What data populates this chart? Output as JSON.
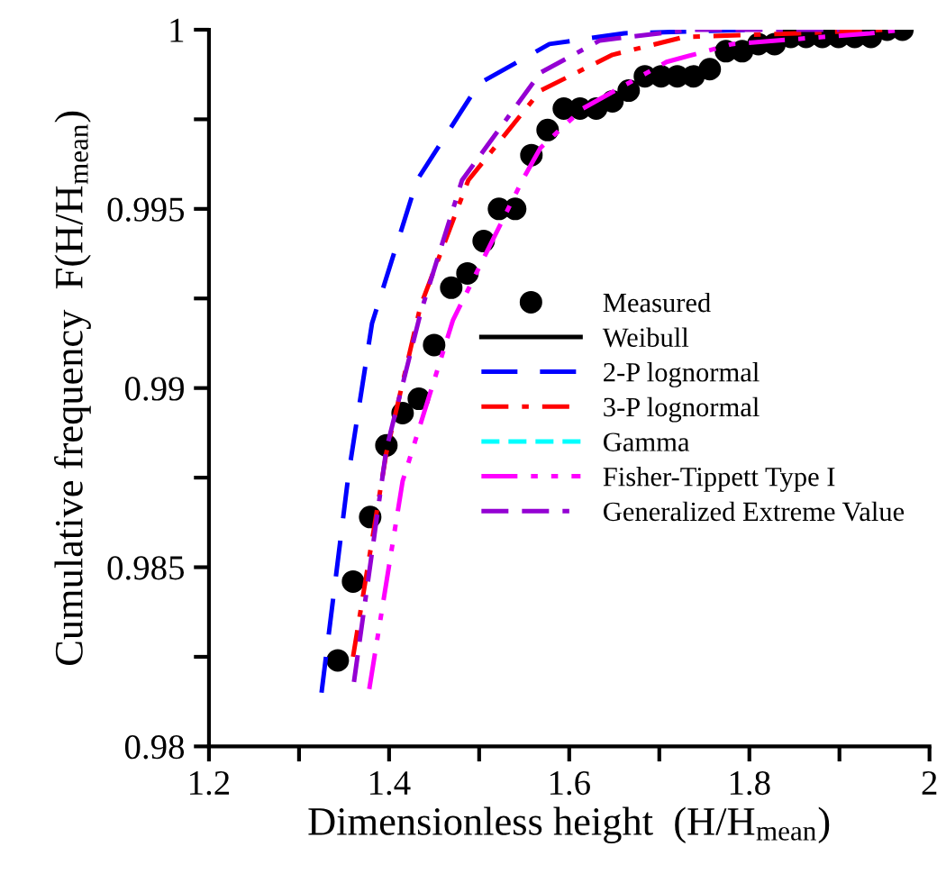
{
  "chart_data": {
    "type": "line",
    "xlabel": "Dimensionless height  (H/H$_{mean}$)",
    "ylabel": "Cumulative frequency  F(H/H$_{mean}$)",
    "xlim": [
      1.2,
      2
    ],
    "ylim": [
      0.98,
      1
    ],
    "xticks": [
      1.2,
      {
        "value": 1.3,
        "label": null
      },
      1.4,
      {
        "value": 1.5,
        "label": null
      },
      1.6,
      {
        "value": 1.7,
        "label": null
      },
      1.8,
      {
        "value": 1.9,
        "label": null
      },
      2
    ],
    "yticks": [
      0.98,
      {
        "value": 0.9825,
        "label": null
      },
      0.985,
      {
        "value": 0.9875,
        "label": null
      },
      0.99,
      {
        "value": 0.9925,
        "label": null
      },
      0.995,
      {
        "value": 0.9975,
        "label": null
      },
      1
    ],
    "grid": false,
    "legend": "right",
    "series": [
      {
        "name": "Measured",
        "type": "scatter",
        "marker": "circle",
        "color": "#000000",
        "x": [
          1.343,
          1.36,
          1.379,
          1.397,
          1.415,
          1.433,
          1.45,
          1.469,
          1.487,
          1.505,
          1.522,
          1.54,
          1.558,
          1.576,
          1.594,
          1.612,
          1.63,
          1.648,
          1.666,
          1.684,
          1.702,
          1.72,
          1.738,
          1.756,
          1.774,
          1.792,
          1.81,
          1.828,
          1.846,
          1.863,
          1.881,
          1.899,
          1.917,
          1.935,
          1.953,
          1.97
        ],
        "values": [
          0.9824,
          0.9846,
          0.9864,
          0.9884,
          0.9893,
          0.9897,
          0.9912,
          0.9928,
          0.9932,
          0.9941,
          0.995,
          0.995,
          0.9965,
          0.9972,
          0.9978,
          0.9978,
          0.9978,
          0.998,
          0.9983,
          0.9987,
          0.9987,
          0.9987,
          0.9987,
          0.9989,
          0.9994,
          0.9994,
          0.9996,
          0.9996,
          0.9998,
          0.9998,
          0.9998,
          0.9998,
          0.9998,
          0.9998,
          1.0,
          1.0
        ]
      },
      {
        "name": "Weibull",
        "line_style": "solid",
        "color": "#000000"
      },
      {
        "name": "2-P lognormal",
        "line_style": "longdash",
        "color": "#0000ff",
        "x": [
          1.325,
          1.355,
          1.381,
          1.431,
          1.5,
          1.578,
          1.661,
          1.8
        ],
        "values": [
          0.9815,
          0.9876,
          0.9918,
          0.9958,
          0.9985,
          0.9996,
          0.9999,
          1.0
        ]
      },
      {
        "name": "3-P lognormal",
        "line_style": "dashdot",
        "color": "#ff0000",
        "x": [
          1.36,
          1.397,
          1.435,
          1.488,
          1.568,
          1.648,
          1.728,
          1.854,
          1.95
        ],
        "values": [
          0.9825,
          0.9882,
          0.9923,
          0.9958,
          0.9983,
          0.9993,
          0.9998,
          0.9999,
          1.0
        ]
      },
      {
        "name": "Gamma",
        "line_style": "dashed",
        "color": "#00ffff"
      },
      {
        "name": "Fisher-Tippett Type I",
        "line_style": "dashdotdot",
        "color": "#ff00ff",
        "x": [
          1.378,
          1.415,
          1.471,
          1.548,
          1.568,
          1.615,
          1.708,
          1.781,
          1.934,
          1.97
        ],
        "values": [
          0.9816,
          0.9874,
          0.9919,
          0.9958,
          0.9967,
          0.9978,
          0.9991,
          0.9996,
          0.9999,
          1.0
        ]
      },
      {
        "name": "Generalized Extreme Value",
        "line_style": "dashdashdot",
        "color": "#9400d3",
        "x": [
          1.361,
          1.397,
          1.435,
          1.481,
          1.568,
          1.634,
          1.734,
          1.9
        ],
        "values": [
          0.9818,
          0.9883,
          0.9921,
          0.9958,
          0.9988,
          0.9997,
          1.0,
          1.0
        ]
      }
    ]
  }
}
